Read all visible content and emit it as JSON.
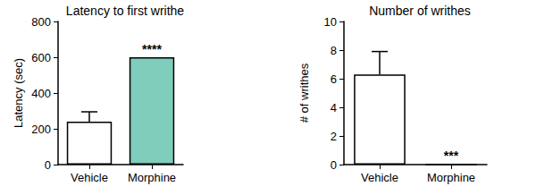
{
  "chart_data": [
    {
      "type": "bar",
      "title": "Latency to first writhe",
      "y_label": "Latency (sec)",
      "categories": [
        "Vehicle",
        "Morphine"
      ],
      "values": [
        240,
        600
      ],
      "errors": [
        55,
        0
      ],
      "colors": [
        "#ffffff",
        "#7fcdbb"
      ],
      "ylim": [
        0,
        800
      ],
      "yticks": [
        0,
        200,
        400,
        600,
        800
      ],
      "grid": false,
      "annotations": [
        {
          "category": "Morphine",
          "text": "****"
        }
      ]
    },
    {
      "type": "bar",
      "title": "Number of writhes",
      "y_label": "# of writhes",
      "categories": [
        "Vehicle",
        "Morphine"
      ],
      "values": [
        6.3,
        0
      ],
      "errors": [
        1.6,
        0
      ],
      "colors": [
        "#ffffff",
        "#7fcdbb"
      ],
      "ylim": [
        0,
        10
      ],
      "yticks": [
        0,
        2,
        4,
        6,
        8,
        10
      ],
      "grid": false,
      "annotations": [
        {
          "category": "Morphine",
          "text": "***"
        }
      ]
    }
  ]
}
